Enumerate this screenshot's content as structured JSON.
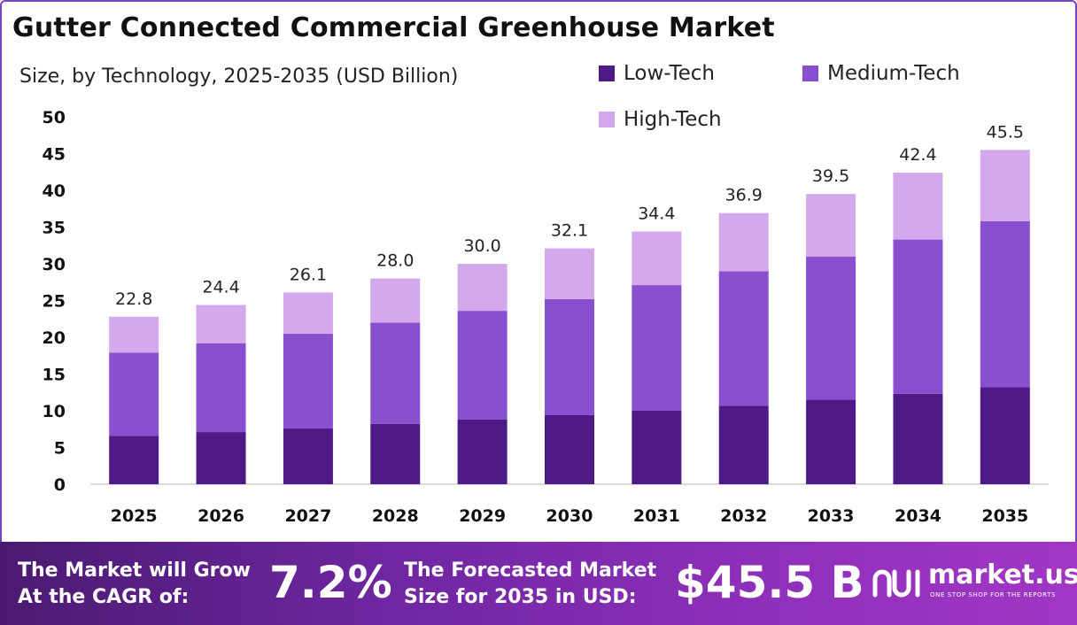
{
  "header": {
    "title": "Gutter Connected Commercial Greenhouse Market",
    "subtitle": "Size, by Technology, 2025-2035 (USD Billion)"
  },
  "legend": [
    {
      "label": "Low-Tech",
      "color": "#4e1a87"
    },
    {
      "label": "Medium-Tech",
      "color": "#8a4fcf"
    },
    {
      "label": "High-Tech",
      "color": "#d3a9ec"
    }
  ],
  "chart_data": {
    "type": "bar",
    "stacked": true,
    "categories": [
      "2025",
      "2026",
      "2027",
      "2028",
      "2029",
      "2030",
      "2031",
      "2032",
      "2033",
      "2034",
      "2035"
    ],
    "series": [
      {
        "name": "Low-Tech",
        "color": "#4e1a87",
        "values": [
          6.6,
          7.1,
          7.6,
          8.2,
          8.8,
          9.4,
          10.0,
          10.7,
          11.5,
          12.3,
          13.2
        ]
      },
      {
        "name": "Medium-Tech",
        "color": "#8a4fcf",
        "values": [
          11.3,
          12.1,
          12.9,
          13.8,
          14.8,
          15.8,
          17.1,
          18.3,
          19.5,
          21.0,
          22.6
        ]
      },
      {
        "name": "High-Tech",
        "color": "#d3a9ec",
        "values": [
          4.9,
          5.2,
          5.6,
          6.0,
          6.4,
          6.9,
          7.3,
          7.9,
          8.5,
          9.1,
          9.7
        ]
      }
    ],
    "totals": [
      "22.8",
      "24.4",
      "26.1",
      "28.0",
      "30.0",
      "32.1",
      "34.4",
      "36.9",
      "39.5",
      "42.4",
      "45.5"
    ],
    "ylim": [
      0,
      50
    ],
    "yticks": [
      0,
      5,
      10,
      15,
      20,
      25,
      30,
      35,
      40,
      45,
      50
    ],
    "xlabel": "",
    "ylabel": "",
    "grid": false,
    "legend_position": "top-right"
  },
  "footer": {
    "cagr_label_line1": "The Market will Grow",
    "cagr_label_line2": "At the CAGR of:",
    "cagr_value": "7.2%",
    "forecast_label_line1": "The Forecasted Market",
    "forecast_label_line2": "Size for 2035 in USD:",
    "forecast_value": "$45.5 B",
    "brand": "market.us",
    "brand_tagline": "ONE STOP SHOP FOR THE REPORTS"
  }
}
